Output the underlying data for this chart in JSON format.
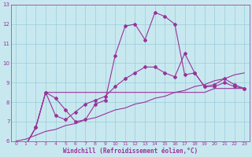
{
  "bg_color": "#c8e8f0",
  "grid_color": "#99ccd9",
  "line_color": "#993399",
  "xlabel": "Windchill (Refroidissement éolien,°C)",
  "x": [
    0,
    1,
    2,
    3,
    4,
    5,
    6,
    7,
    8,
    9,
    10,
    11,
    12,
    13,
    14,
    15,
    16,
    17,
    18,
    19,
    20,
    21,
    22,
    23
  ],
  "series_jagged": [
    5.8,
    5.8,
    6.7,
    8.5,
    8.2,
    7.6,
    7.0,
    7.1,
    7.9,
    8.1,
    10.4,
    11.9,
    12.0,
    11.2,
    12.6,
    12.4,
    12.0,
    9.4,
    9.5,
    8.8,
    8.9,
    9.2,
    8.9,
    8.7
  ],
  "series_flat": [
    5.8,
    5.8,
    6.7,
    8.5,
    8.5,
    8.5,
    8.5,
    8.5,
    8.5,
    8.5,
    8.5,
    8.5,
    8.5,
    8.5,
    8.5,
    8.5,
    8.5,
    8.5,
    8.5,
    8.5,
    8.7,
    8.7,
    8.7,
    8.7
  ],
  "series_smooth": [
    5.8,
    5.8,
    6.7,
    8.5,
    7.3,
    7.1,
    7.5,
    7.9,
    8.1,
    8.3,
    8.8,
    9.2,
    9.5,
    9.8,
    9.8,
    9.5,
    9.3,
    10.5,
    9.5,
    8.8,
    8.8,
    9.0,
    8.8,
    8.7
  ],
  "series_trend": [
    6.0,
    6.1,
    6.3,
    6.5,
    6.6,
    6.8,
    6.9,
    7.1,
    7.2,
    7.4,
    7.6,
    7.7,
    7.9,
    8.0,
    8.2,
    8.3,
    8.5,
    8.6,
    8.8,
    8.9,
    9.1,
    9.2,
    9.4,
    9.5
  ],
  "ylim": [
    6,
    13
  ],
  "xlim_min": -0.5,
  "xlim_max": 23.5,
  "yticks": [
    6,
    7,
    8,
    9,
    10,
    11,
    12,
    13
  ],
  "xticks": [
    0,
    1,
    2,
    3,
    4,
    5,
    6,
    7,
    8,
    9,
    10,
    11,
    12,
    13,
    14,
    15,
    16,
    17,
    18,
    19,
    20,
    21,
    22,
    23
  ]
}
